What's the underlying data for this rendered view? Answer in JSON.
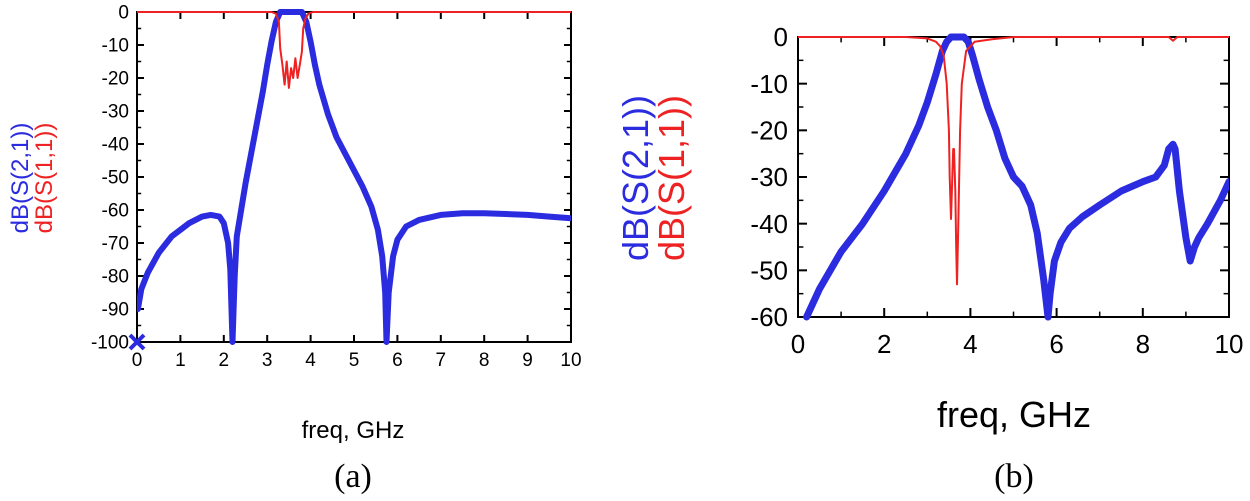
{
  "chart_data": [
    {
      "panel_label": "(a)",
      "type": "line",
      "xlabel": "freq, GHz",
      "ylabel": [
        "dB(S(2,1))",
        "dB(S(1,1))"
      ],
      "xlim": [
        0,
        10
      ],
      "ylim": [
        -100,
        0
      ],
      "x_ticks": [
        0,
        1,
        2,
        3,
        4,
        5,
        6,
        7,
        8,
        9,
        10
      ],
      "y_ticks": [
        0,
        -10,
        -20,
        -30,
        -40,
        -50,
        -60,
        -70,
        -80,
        -90,
        -100
      ],
      "grid": false,
      "marker": {
        "x": 0,
        "y": -100,
        "symbol": "x",
        "color": "#2b2bdf"
      },
      "series": [
        {
          "name": "dB(S(2,1))",
          "color": "#2b2bdf",
          "x": [
            0.02,
            0.1,
            0.25,
            0.5,
            0.8,
            1.0,
            1.2,
            1.5,
            1.7,
            1.9,
            2.0,
            2.1,
            2.15,
            2.2,
            2.25,
            2.3,
            2.5,
            2.7,
            2.9,
            3.0,
            3.1,
            3.2,
            3.3,
            3.35,
            3.4,
            3.5,
            3.6,
            3.7,
            3.75,
            3.8,
            3.9,
            4.0,
            4.1,
            4.2,
            4.4,
            4.6,
            4.8,
            5.0,
            5.2,
            5.4,
            5.55,
            5.65,
            5.72,
            5.75,
            5.8,
            5.9,
            6.0,
            6.2,
            6.5,
            7.0,
            7.5,
            8.0,
            8.5,
            9.0,
            9.5,
            10.0
          ],
          "y": [
            -90,
            -84,
            -79,
            -73,
            -68,
            -66,
            -64,
            -62,
            -61.5,
            -62,
            -64,
            -70,
            -78,
            -100,
            -80,
            -68,
            -52,
            -38,
            -24,
            -16,
            -9,
            -3,
            0,
            0,
            0,
            0,
            0,
            0,
            0,
            0,
            -3,
            -9,
            -16,
            -22,
            -31,
            -38,
            -43,
            -48,
            -53,
            -59,
            -66,
            -74,
            -85,
            -100,
            -85,
            -74,
            -69,
            -65,
            -63,
            -61.5,
            -61,
            -61,
            -61.2,
            -61.5,
            -62,
            -62.5
          ]
        },
        {
          "name": "dB(S(1,1))",
          "color": "#ee2222",
          "x": [
            0,
            1,
            2,
            2.8,
            3.1,
            3.2,
            3.27,
            3.3,
            3.35,
            3.4,
            3.45,
            3.5,
            3.55,
            3.6,
            3.65,
            3.7,
            3.75,
            3.8,
            3.83,
            3.88,
            3.95,
            4.05,
            4.3,
            5,
            6,
            8,
            10
          ],
          "y": [
            0,
            0,
            0,
            0,
            0,
            -0.5,
            -3,
            -11,
            -16,
            -22,
            -15,
            -23,
            -17,
            -20,
            -14,
            -20,
            -16,
            -12,
            -5,
            -2,
            -0.5,
            0,
            0,
            0,
            0,
            0,
            0
          ]
        }
      ]
    },
    {
      "panel_label": "(b)",
      "type": "line",
      "xlabel": "freq, GHz",
      "ylabel": [
        "dB(S(2,1))",
        "dB(S(1,1))"
      ],
      "xlim": [
        0,
        10
      ],
      "ylim": [
        -60,
        0
      ],
      "x_ticks": [
        0,
        2,
        4,
        6,
        8,
        10
      ],
      "y_ticks": [
        0,
        -10,
        -20,
        -30,
        -40,
        -50,
        -60
      ],
      "grid": false,
      "series": [
        {
          "name": "dB(S(2,1))",
          "color": "#2b2bdf",
          "x": [
            0.2,
            0.5,
            1.0,
            1.5,
            2.0,
            2.5,
            2.8,
            3.0,
            3.2,
            3.35,
            3.45,
            3.55,
            3.65,
            3.75,
            3.85,
            3.95,
            4.05,
            4.2,
            4.4,
            4.6,
            4.8,
            4.9,
            5.0,
            5.2,
            5.4,
            5.55,
            5.7,
            5.8,
            5.85,
            5.95,
            6.1,
            6.3,
            6.6,
            7.0,
            7.5,
            8.0,
            8.3,
            8.5,
            8.6,
            8.7,
            8.75,
            8.85,
            9.0,
            9.1,
            9.2,
            9.3,
            9.5,
            9.8,
            10.0
          ],
          "y": [
            -60,
            -54,
            -46,
            -40,
            -33,
            -25,
            -19,
            -14,
            -8,
            -3,
            -1,
            0,
            0,
            0,
            0,
            -1,
            -4,
            -9,
            -15,
            -20,
            -26,
            -28,
            -30,
            -32,
            -36,
            -42,
            -52,
            -60,
            -55,
            -48,
            -44,
            -41,
            -38.5,
            -36,
            -33,
            -31,
            -30,
            -27.5,
            -24,
            -23,
            -24,
            -33,
            -43,
            -48,
            -45,
            -43,
            -40,
            -35,
            -31
          ]
        },
        {
          "name": "dB(S(1,1))",
          "color": "#ee2222",
          "x": [
            0,
            1,
            2,
            2.5,
            3.0,
            3.2,
            3.3,
            3.38,
            3.45,
            3.5,
            3.52,
            3.55,
            3.58,
            3.6,
            3.62,
            3.65,
            3.67,
            3.69,
            3.72,
            3.76,
            3.8,
            3.9,
            4.1,
            4.5,
            5,
            6,
            7,
            8,
            8.6,
            8.7,
            8.8,
            9,
            10
          ],
          "y": [
            0,
            0,
            0,
            0,
            -0.3,
            -1,
            -2,
            -4,
            -10,
            -20,
            -30,
            -39,
            -30,
            -24,
            -24,
            -33,
            -45,
            -53,
            -40,
            -20,
            -10,
            -3,
            -1,
            -0.5,
            0,
            0,
            0,
            0,
            0,
            -0.8,
            0,
            0,
            0
          ]
        }
      ]
    }
  ]
}
